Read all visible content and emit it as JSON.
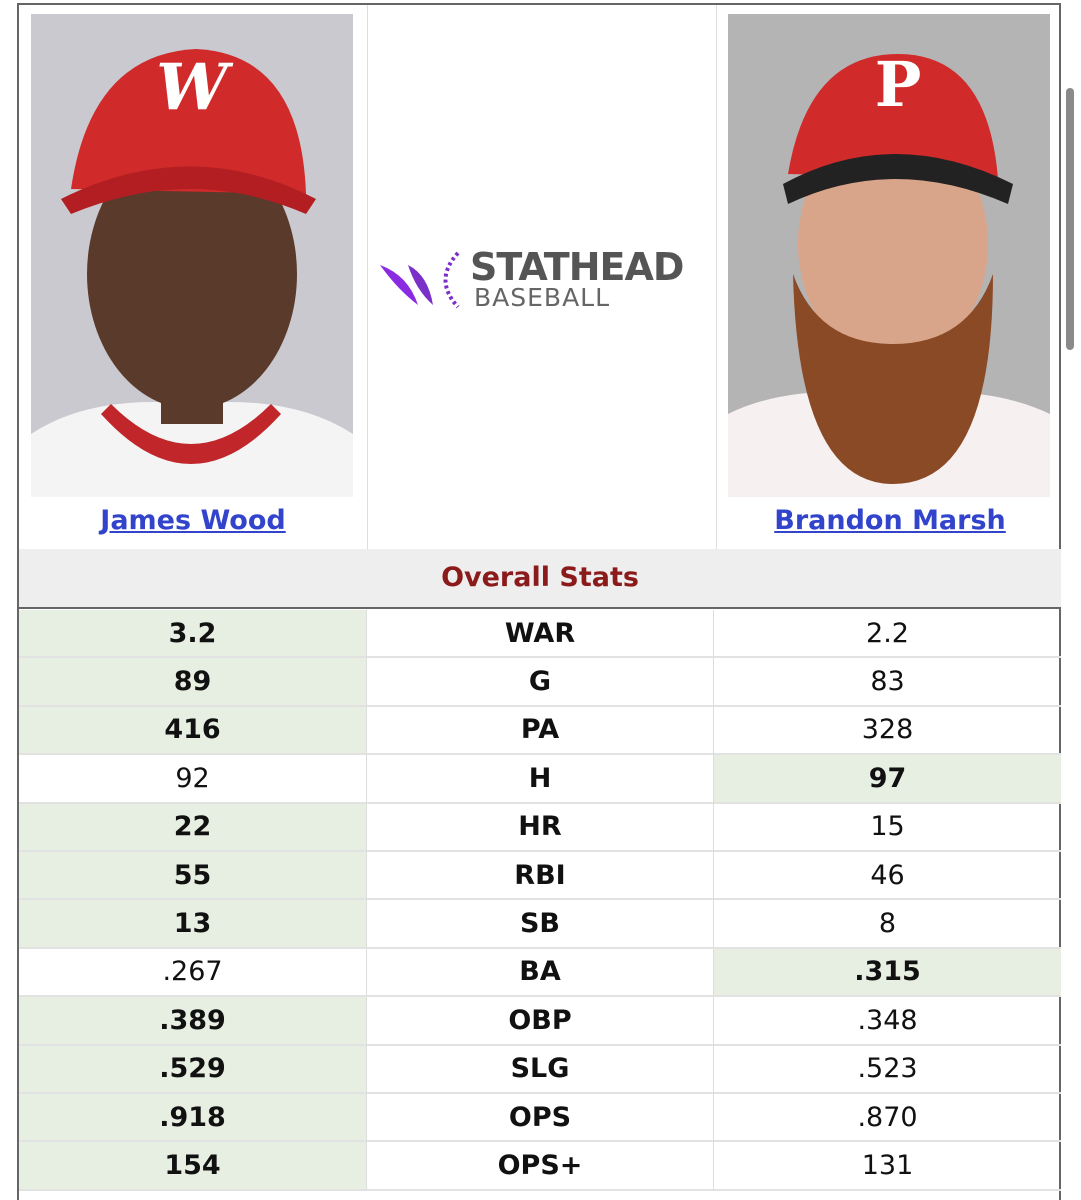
{
  "players": [
    {
      "name": "James Wood"
    },
    {
      "name": "Brandon Marsh"
    }
  ],
  "logo": {
    "line1": "STATHEAD",
    "line2": "BASEBALL"
  },
  "section_title": "Overall Stats",
  "rows": [
    {
      "left": "3.2",
      "stat": "WAR",
      "right": "2.2",
      "leader": "left"
    },
    {
      "left": "89",
      "stat": "G",
      "right": "83",
      "leader": "left"
    },
    {
      "left": "416",
      "stat": "PA",
      "right": "328",
      "leader": "left"
    },
    {
      "left": "92",
      "stat": "H",
      "right": "97",
      "leader": "right"
    },
    {
      "left": "22",
      "stat": "HR",
      "right": "15",
      "leader": "left"
    },
    {
      "left": "55",
      "stat": "RBI",
      "right": "46",
      "leader": "left"
    },
    {
      "left": "13",
      "stat": "SB",
      "right": "8",
      "leader": "left"
    },
    {
      "left": ".267",
      "stat": "BA",
      "right": ".315",
      "leader": "right"
    },
    {
      "left": ".389",
      "stat": "OBP",
      "right": ".348",
      "leader": "left"
    },
    {
      "left": ".529",
      "stat": "SLG",
      "right": ".523",
      "leader": "left"
    },
    {
      "left": ".918",
      "stat": "OPS",
      "right": ".870",
      "leader": "left"
    },
    {
      "left": "154",
      "stat": "OPS+",
      "right": "131",
      "leader": "left"
    }
  ]
}
